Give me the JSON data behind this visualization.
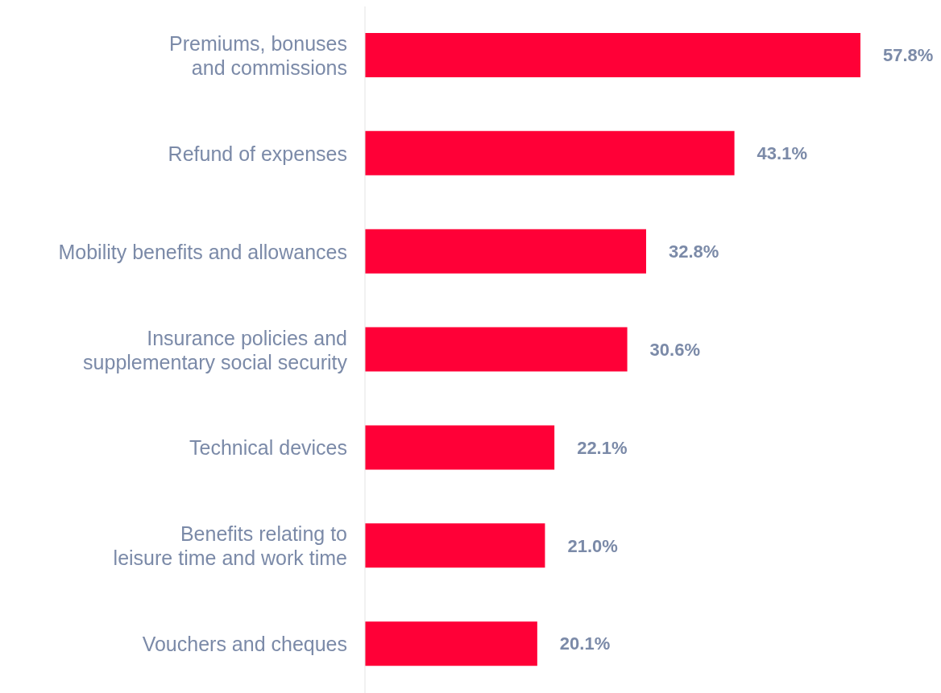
{
  "chart_data": {
    "type": "bar",
    "orientation": "horizontal",
    "categories": [
      "Premiums, bonuses\nand commissions",
      "Refund of expenses",
      "Mobility benefits and allowances",
      "Insurance policies and\nsupplementary social security",
      "Technical devices",
      "Benefits relating to\nleisure time and work time",
      "Vouchers and cheques"
    ],
    "values": [
      57.8,
      43.1,
      32.8,
      30.6,
      22.1,
      21.0,
      20.1
    ],
    "value_labels": [
      "57.8%",
      "43.1%",
      "32.8%",
      "30.6%",
      "22.1%",
      "21.0%",
      "20.1%"
    ],
    "color": "#ff0037",
    "grid": false,
    "legend": false
  }
}
